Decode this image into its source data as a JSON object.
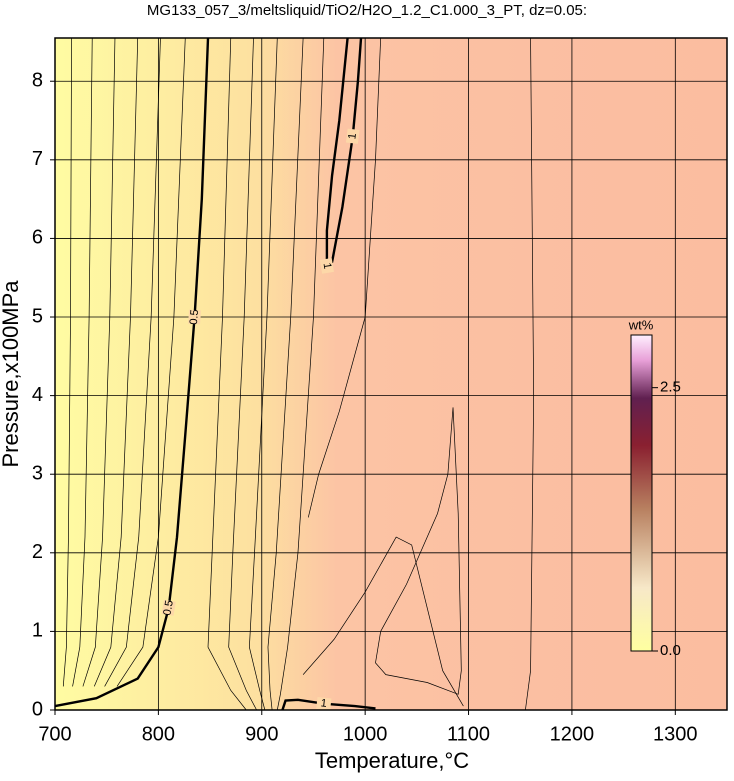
{
  "chart_data": {
    "type": "contour",
    "title": "MG133_057_3/meltsliquid/TiO2/H2O_1.2_C1.000_3_PT, dz=0.05:",
    "x_label": "Temperature,°C",
    "y_label": "Pressure,x100MPa",
    "xlim": [
      700,
      1350
    ],
    "ylim": [
      0,
      8.55
    ],
    "xticks": [
      700,
      800,
      900,
      1000,
      1100,
      1200,
      1300
    ],
    "yticks": [
      0,
      1,
      2,
      3,
      4,
      5,
      6,
      7,
      8
    ],
    "grid": true,
    "contours": [
      {
        "level": 0.2,
        "x": [
          716,
          715,
          713,
          711,
          708
        ],
        "y": [
          8.55,
          5,
          2.2,
          0.8,
          0.3
        ]
      },
      {
        "level": 0.25,
        "x": [
          736,
          733,
          729,
          724,
          717
        ],
        "y": [
          8.55,
          5,
          2.2,
          0.8,
          0.3
        ]
      },
      {
        "level": 0.3,
        "x": [
          758,
          753,
          746,
          739,
          727
        ],
        "y": [
          8.55,
          5,
          2.2,
          0.8,
          0.3
        ]
      },
      {
        "level": 0.35,
        "x": [
          780,
          773,
          764,
          754,
          738
        ],
        "y": [
          8.55,
          5,
          2.2,
          0.8,
          0.3
        ]
      },
      {
        "level": 0.4,
        "x": [
          802,
          793,
          781,
          769,
          748
        ],
        "y": [
          8.55,
          5,
          2.2,
          0.8,
          0.3
        ]
      },
      {
        "level": 0.45,
        "x": [
          826,
          815,
          800,
          785,
          760
        ],
        "y": [
          8.55,
          5,
          2.2,
          0.8,
          0.3
        ]
      },
      {
        "level": 0.5,
        "bold": true,
        "x": [
          700,
          740,
          780,
          800,
          810,
          818,
          826,
          835,
          842,
          848
        ],
        "y": [
          0.05,
          0.15,
          0.4,
          0.8,
          1.3,
          2.2,
          3.5,
          5,
          6.5,
          8.55
        ]
      },
      {
        "level": 0.55,
        "x": [
          870,
          862,
          852,
          848,
          870,
          885
        ],
        "y": [
          8.55,
          5,
          2,
          0.8,
          0.25,
          0
        ]
      },
      {
        "level": 0.6,
        "x": [
          892,
          883,
          872,
          868,
          885,
          895
        ],
        "y": [
          8.55,
          5,
          2,
          0.8,
          0.25,
          0
        ]
      },
      {
        "level": 0.65,
        "x": [
          915,
          905,
          893,
          888,
          898,
          903
        ],
        "y": [
          8.55,
          5,
          2,
          0.8,
          0.25,
          0
        ]
      },
      {
        "level": 0.7,
        "x": [
          940,
          928,
          914,
          906,
          908,
          910
        ],
        "y": [
          8.55,
          5,
          2,
          0.8,
          0.25,
          0
        ]
      },
      {
        "level": 0.75,
        "x": [
          960,
          950,
          935,
          925,
          918,
          915
        ],
        "y": [
          8.55,
          5,
          2,
          0.8,
          0.2,
          0
        ]
      },
      {
        "level": 0.95,
        "x": [
          945,
          955,
          975,
          1000,
          1010,
          1015
        ],
        "y": [
          2.45,
          3,
          3.8,
          5,
          7,
          8.55
        ]
      },
      {
        "level": 1,
        "bold": true,
        "x": [
          983,
          975,
          968,
          963,
          963,
          968,
          978,
          988,
          993,
          996
        ],
        "y": [
          8.55,
          7.5,
          6.8,
          6.1,
          5.65,
          5.7,
          6.4,
          7.3,
          8,
          8.55
        ]
      },
      {
        "level": 1,
        "bold": true,
        "x": [
          920,
          923,
          935,
          960,
          990,
          1010
        ],
        "y": [
          0,
          0.12,
          0.13,
          0.08,
          0.05,
          0.02
        ]
      },
      {
        "level": 0.9,
        "x": [
          940,
          970,
          1000,
          1030,
          1045,
          1075,
          1095
        ],
        "y": [
          0.45,
          0.9,
          1.5,
          2.2,
          2.1,
          0.5,
          0.05
        ]
      },
      {
        "level": 1.05,
        "x": [
          1085,
          1080,
          1070,
          1040,
          1015,
          1010,
          1020,
          1060,
          1090,
          1093,
          1090,
          1085
        ],
        "y": [
          3.85,
          3,
          2.5,
          1.6,
          1,
          0.6,
          0.45,
          0.35,
          0.2,
          0.5,
          2.5,
          3.85
        ]
      },
      {
        "level": 1.1,
        "x": [
          1160,
          1163,
          1160,
          1155
        ],
        "y": [
          8.55,
          4,
          0.5,
          0
        ]
      }
    ],
    "colorbar": {
      "label": "wt%",
      "lim": [
        0,
        3
      ],
      "ticks": [
        {
          "value": 0,
          "label": "0.0"
        },
        2.5
      ]
    }
  }
}
